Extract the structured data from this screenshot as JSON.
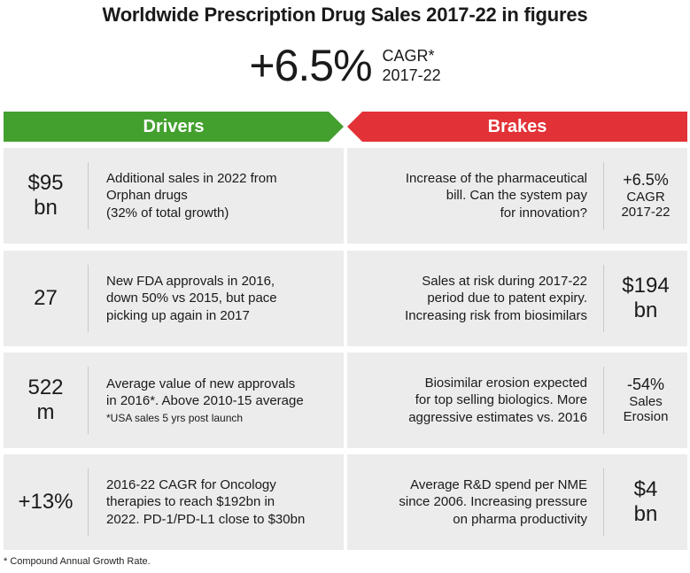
{
  "title": "Worldwide Prescription Drug Sales 2017-22 in figures",
  "headline": {
    "value": "+6.5%",
    "label": "CAGR*",
    "period": "2017-22"
  },
  "drivers": {
    "label": "Drivers",
    "color": "#43a02f",
    "items": [
      {
        "stat": [
          "$95",
          "bn"
        ],
        "lines": [
          "Additional sales in 2022 from",
          "Orphan drugs",
          "(32% of total growth)"
        ],
        "note": ""
      },
      {
        "stat": [
          "27"
        ],
        "lines": [
          "New FDA approvals in 2016,",
          "down 50% vs 2015, but pace",
          "picking up again in 2017"
        ],
        "note": ""
      },
      {
        "stat": [
          "522",
          "m"
        ],
        "lines": [
          "Average value of new approvals",
          "in 2016*. Above 2010-15 average"
        ],
        "note": "*USA sales 5 yrs post launch"
      },
      {
        "stat": [
          "+13%"
        ],
        "lines": [
          "2016-22 CAGR for Oncology",
          "therapies to reach $192bn in",
          "2022. PD-1/PD-L1 close to $30bn"
        ],
        "note": ""
      }
    ]
  },
  "brakes": {
    "label": "Brakes",
    "color": "#e23237",
    "items": [
      {
        "stat": [
          "+6.5%",
          "CAGR",
          "2017-22"
        ],
        "lines": [
          "Increase of the pharmaceutical",
          "bill. Can the system pay",
          "for innovation?"
        ]
      },
      {
        "stat": [
          "$194",
          "bn"
        ],
        "lines": [
          "Sales at risk during 2017-22",
          "period due to patent expiry.",
          "Increasing risk from biosimilars"
        ]
      },
      {
        "stat": [
          "-54%",
          "Sales",
          "Erosion"
        ],
        "lines": [
          "Biosimilar erosion expected",
          "for top selling biologics. More",
          "aggressive estimates vs. 2016"
        ]
      },
      {
        "stat": [
          "$4",
          "bn"
        ],
        "lines": [
          "Average R&D spend per NME",
          "since 2006. Increasing pressure",
          "on pharma productivity"
        ]
      }
    ]
  },
  "footnote": "* Compound Annual Growth Rate."
}
